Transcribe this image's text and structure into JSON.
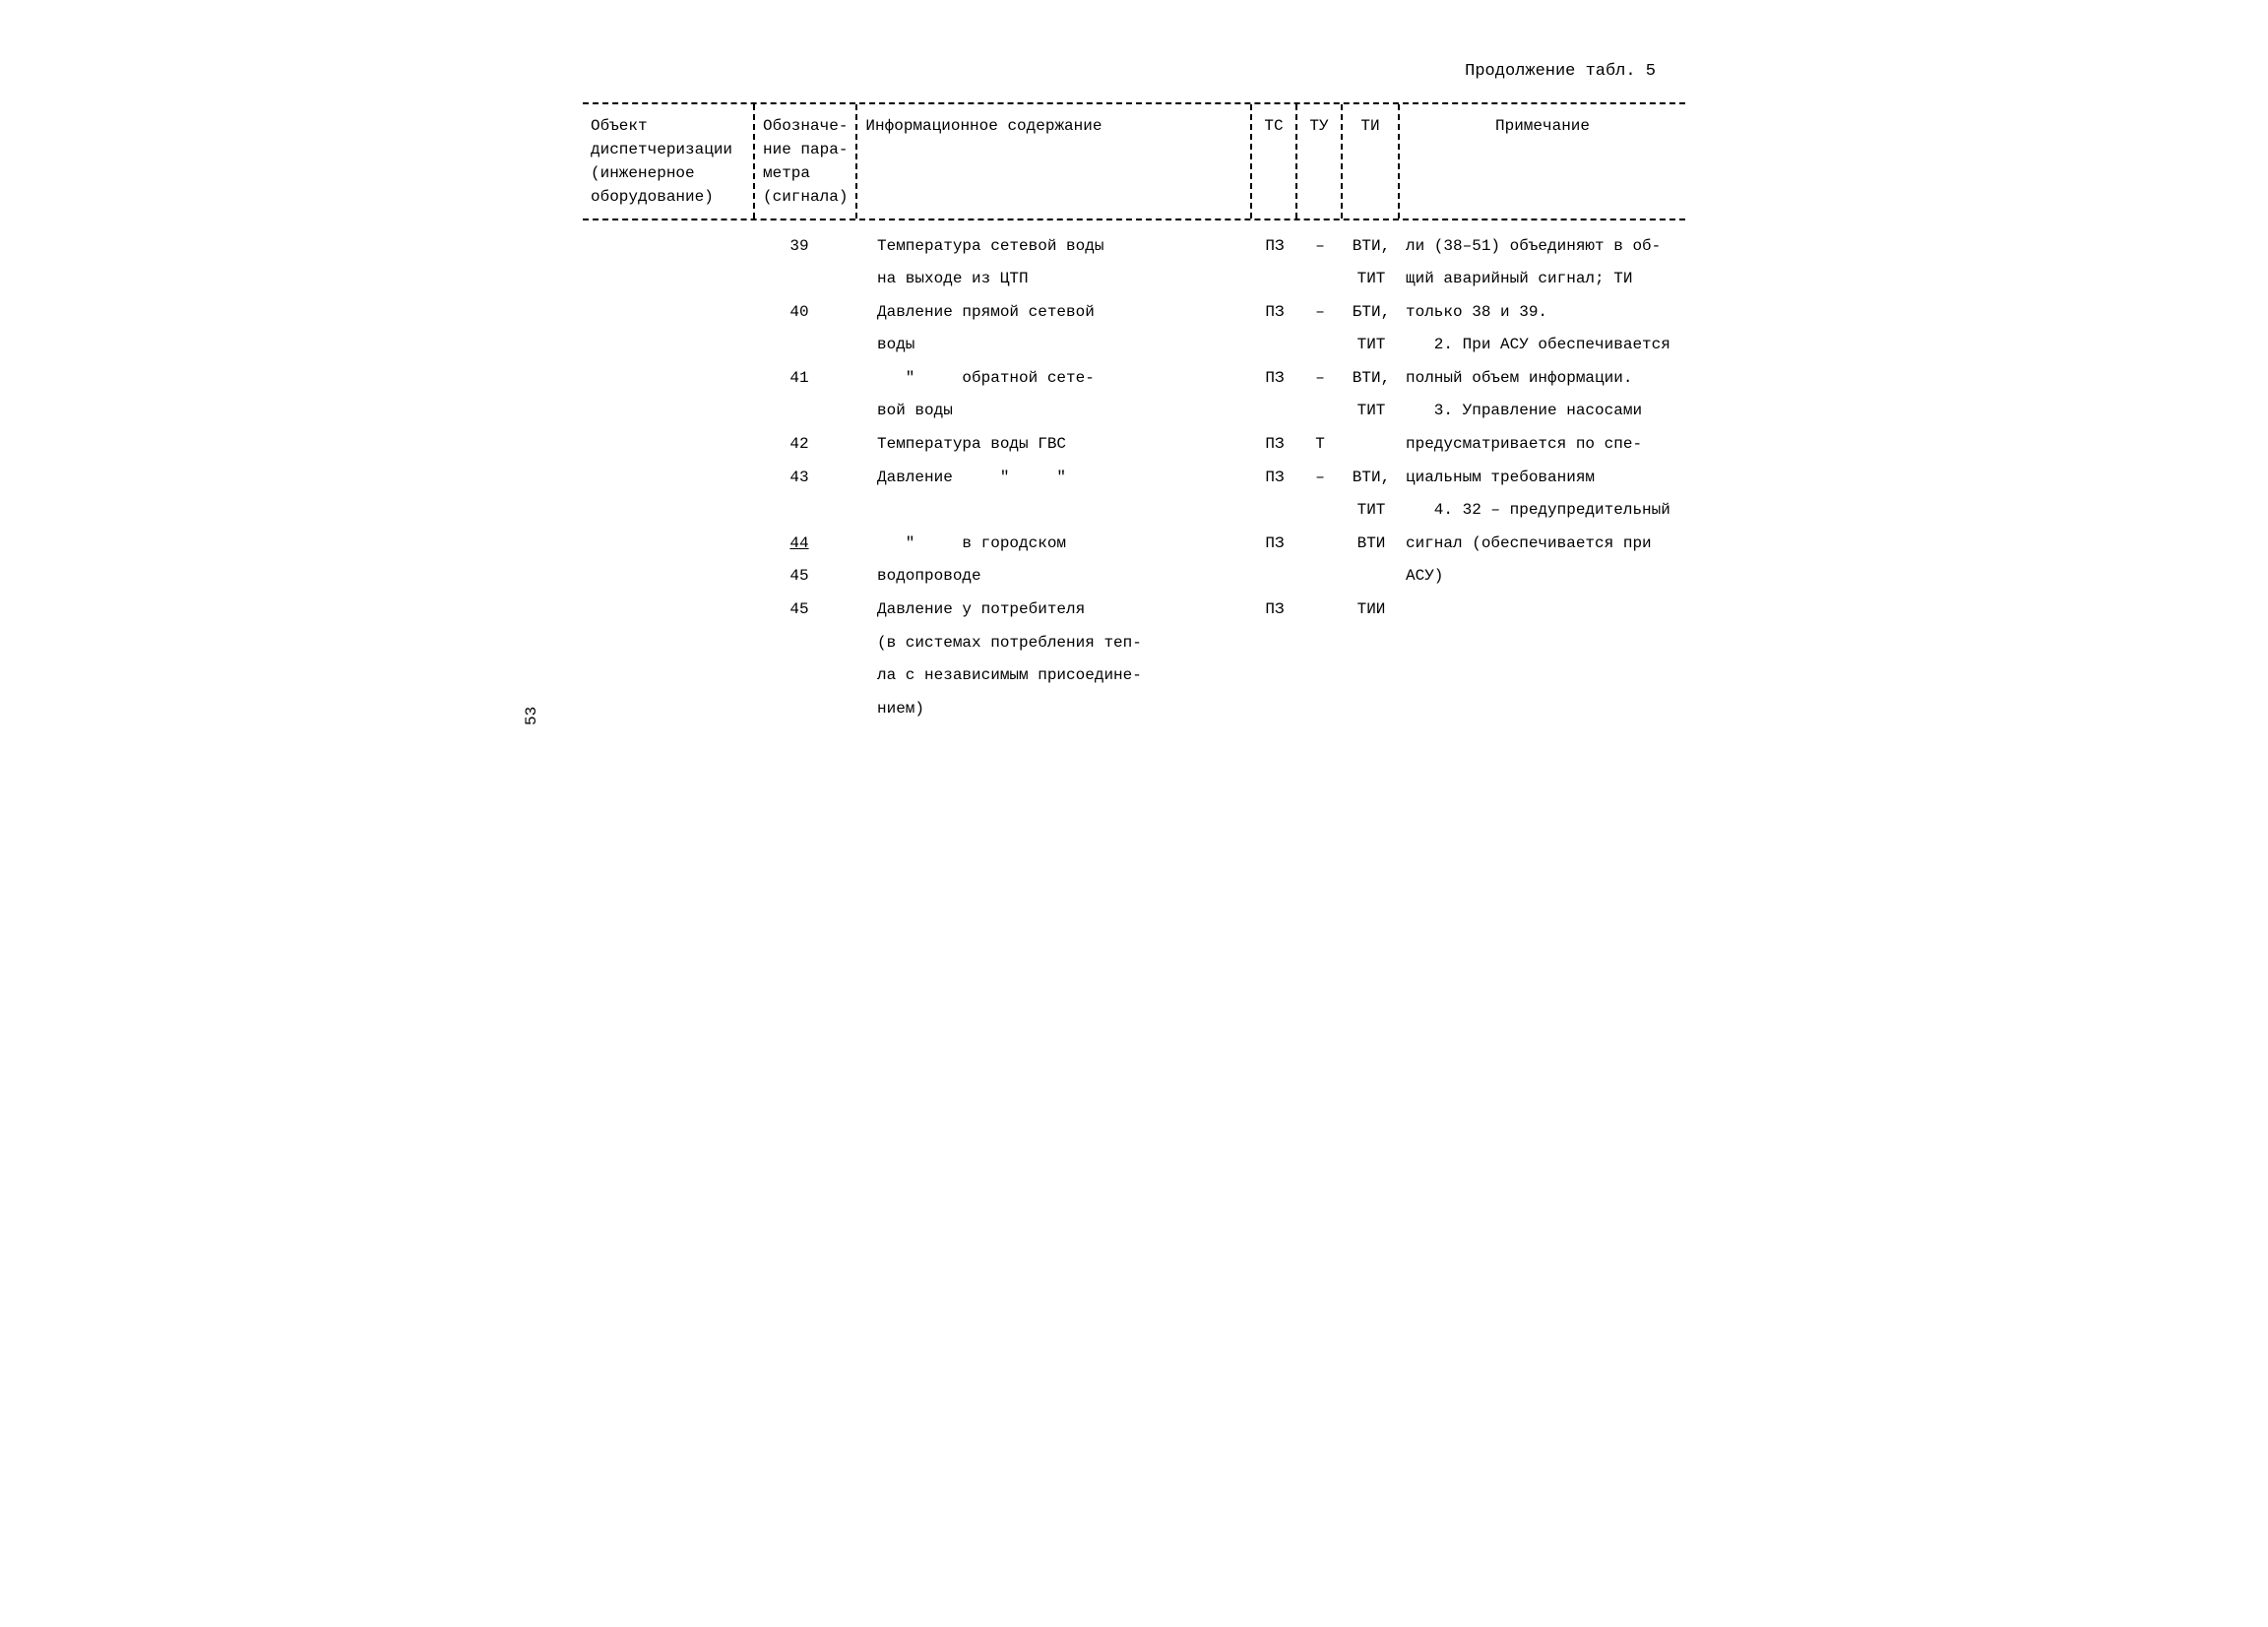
{
  "caption": "Продолжение табл. 5",
  "pageNumber": "53",
  "headers": {
    "obj": "Объект диспетчери­зации (инженерное оборудование)",
    "oboz": "Обозначе­ние пара­метра (сигнала)",
    "info": "Информационное содержание",
    "tc": "ТС",
    "ty": "ТУ",
    "ti": "ТИ",
    "note": "Примечание"
  },
  "rows": [
    {
      "oboz": "39",
      "info1": "Температура сетевой воды",
      "info2": "на выходе из ЦТП",
      "tc": "ПЗ",
      "ty": "–",
      "ti1": "ВТИ,",
      "ti2": "ТИТ"
    },
    {
      "oboz": "40",
      "info1": "Давление прямой сетевой",
      "info2": "воды",
      "tc": "ПЗ",
      "ty": "–",
      "ti1": "БТИ,",
      "ti2": "ТИТ"
    },
    {
      "oboz": "41",
      "info1": "   \"     обратной сете-",
      "info2": "вой воды",
      "tc": "ПЗ",
      "ty": "–",
      "ti1": "ВТИ,",
      "ti2": "ТИТ"
    },
    {
      "oboz": "42",
      "info1": "Температура воды ГВС",
      "info2": "",
      "tc": "ПЗ",
      "ty": "Т",
      "ti1": "",
      "ti2": ""
    },
    {
      "oboz": "43",
      "info1": "Давление     \"     \"",
      "info2": "",
      "tc": "ПЗ",
      "ty": "–",
      "ti1": "ВТИ,",
      "ti2": "ТИТ"
    },
    {
      "oboz": "44",
      "info1": "   \"     в городском",
      "info2": "",
      "tc": "ПЗ",
      "ty": "",
      "ti1": "ВТИ",
      "ti2": ""
    },
    {
      "oboz": "45",
      "info1": "водопроводе",
      "info2": "",
      "tc": "",
      "ty": "",
      "ti1": "",
      "ti2": ""
    },
    {
      "oboz": "45",
      "info1": "Давление у потребителя",
      "info2": "(в системах потребления теп-",
      "tc": "ПЗ",
      "ty": "",
      "ti1": "ТИИ",
      "ti2": ""
    },
    {
      "oboz": "",
      "info1": "ла с независимым присоедине-",
      "info2": "нием)",
      "tc": "",
      "ty": "",
      "ti1": "",
      "ti2": ""
    }
  ],
  "notes": [
    "ли (38–51) объединяют в об-",
    "щий аварийный сигнал; ТИ",
    "только 38 и 39.",
    "   2. При АСУ обеспечивается",
    "полный объем информации.",
    "   3. Управление насосами",
    "предусматривается по спе-",
    "циальным требованиям",
    "   4. 32 – предупредительный",
    "сигнал (обеспечивается при",
    "АСУ)"
  ]
}
